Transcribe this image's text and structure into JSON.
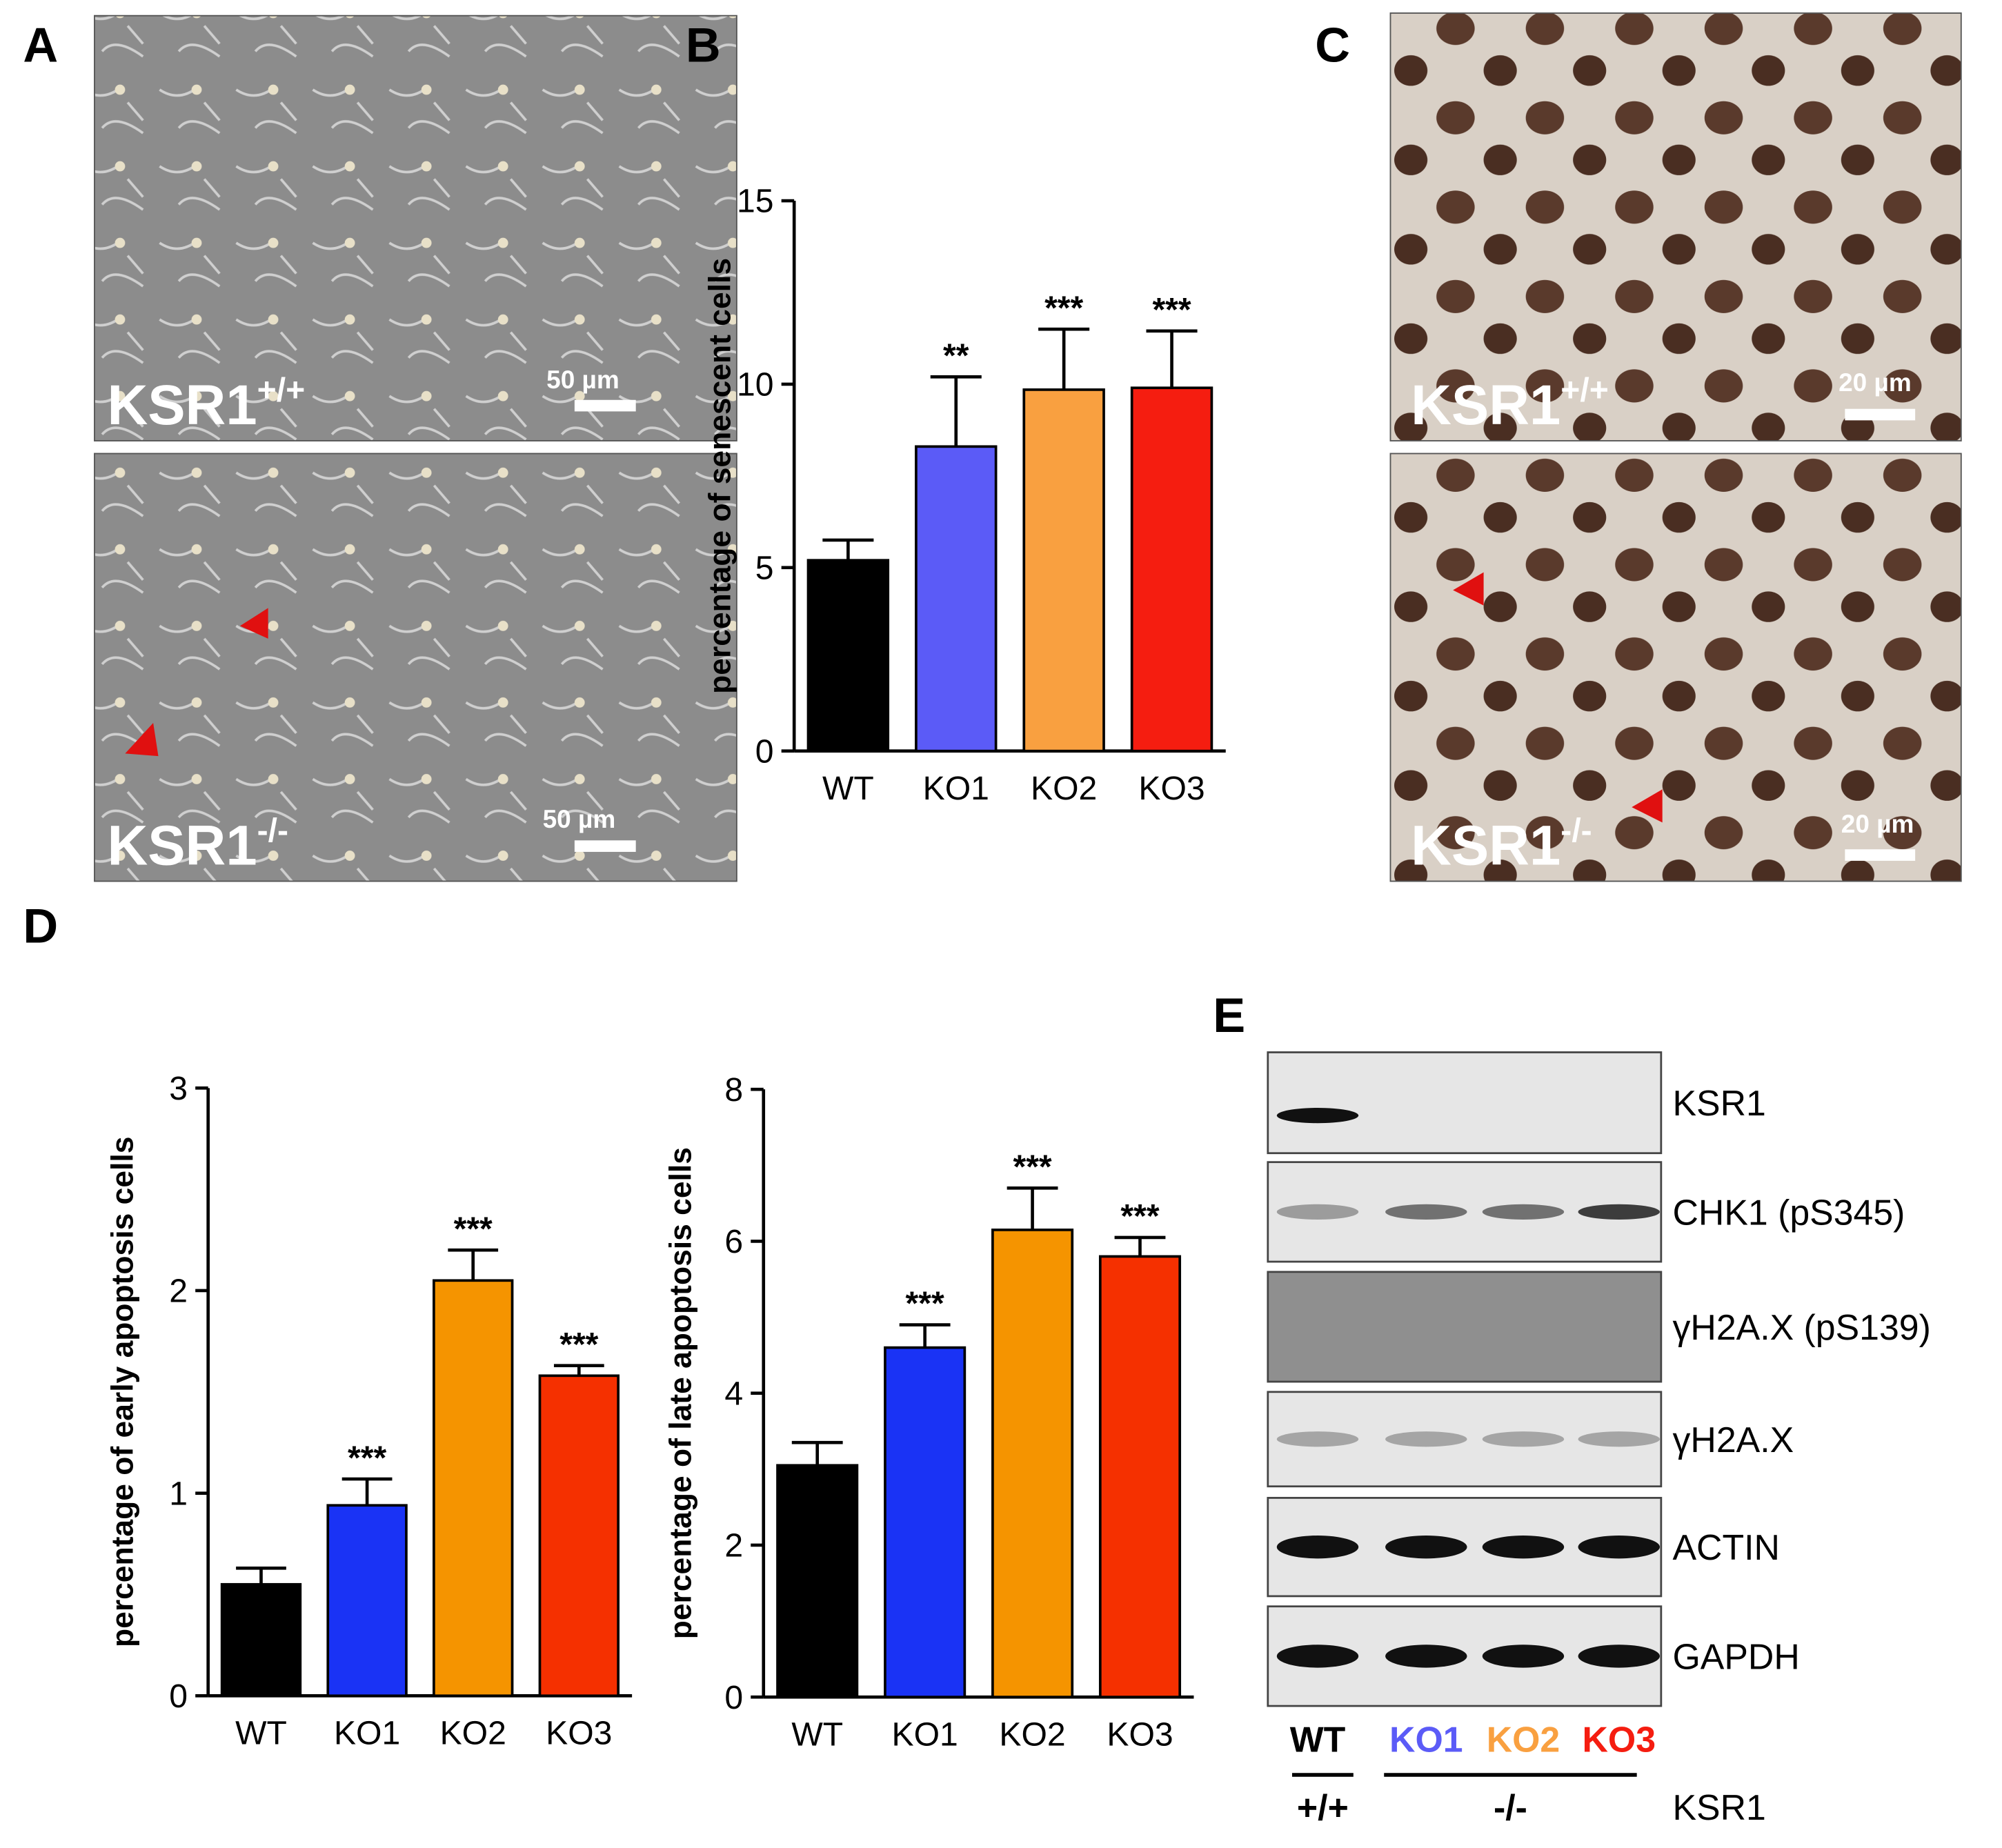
{
  "chart_data": [
    {
      "type": "bar",
      "y_label": "percentage of senescent cells",
      "categories": [
        "WT",
        "KO1",
        "KO2",
        "KO3"
      ],
      "values": [
        5.2,
        8.3,
        9.85,
        9.9
      ],
      "errors": [
        0.55,
        1.9,
        1.65,
        1.55
      ],
      "annotations": [
        null,
        "**",
        "***",
        "***"
      ],
      "colors": [
        "#000000",
        "#5b5bf7",
        "#f9a040",
        "#f51d10"
      ],
      "ylim": [
        0,
        15
      ],
      "yticks": [
        0,
        5,
        10,
        15
      ]
    },
    {
      "type": "bar",
      "y_label": "percentage of early apoptosis cells",
      "categories": [
        "WT",
        "KO1",
        "KO2",
        "KO3"
      ],
      "values": [
        0.55,
        0.94,
        2.05,
        1.58
      ],
      "errors": [
        0.08,
        0.13,
        0.15,
        0.05
      ],
      "annotations": [
        null,
        "***",
        "***",
        "***"
      ],
      "colors": [
        "#000000",
        "#1a33f5",
        "#f59400",
        "#f53000"
      ],
      "ylim": [
        0,
        3
      ],
      "yticks": [
        0,
        1,
        2,
        3
      ]
    },
    {
      "type": "bar",
      "y_label": "percentage of late apoptosis cells",
      "categories": [
        "WT",
        "KO1",
        "KO2",
        "KO3"
      ],
      "values": [
        3.05,
        4.6,
        6.15,
        5.8
      ],
      "errors": [
        0.3,
        0.3,
        0.55,
        0.25
      ],
      "annotations": [
        null,
        "***",
        "***",
        "***"
      ],
      "colors": [
        "#000000",
        "#1a33f5",
        "#f59400",
        "#f53000"
      ],
      "ylim": [
        0,
        8
      ],
      "yticks": [
        0,
        2,
        4,
        6,
        8
      ]
    }
  ],
  "panel_letters": [
    "A",
    "B",
    "C",
    "D",
    "E"
  ],
  "micrographs": [
    {
      "gene": "KSR1",
      "genotype": "+/+",
      "scale": "50 µm"
    },
    {
      "gene": "KSR1",
      "genotype": "-/-",
      "scale": "50 µm"
    },
    {
      "gene": "KSR1",
      "genotype": "+/+",
      "scale": "20 µm"
    },
    {
      "gene": "KSR1",
      "genotype": "-/-",
      "scale": "20 µm"
    }
  ],
  "blot": {
    "rows": [
      "KSR1",
      "CHK1 (pS345)",
      "γH2A.X (pS139)",
      "γH2A.X",
      "ACTIN",
      "GAPDH"
    ],
    "lanes": [
      {
        "label": "WT",
        "color": "#000000"
      },
      {
        "label": "KO1",
        "color": "#5b5bf7"
      },
      {
        "label": "KO2",
        "color": "#f9a040"
      },
      {
        "label": "KO3",
        "color": "#f51d10"
      }
    ],
    "genotypes": [
      "+/+",
      "-/-"
    ],
    "genotype_label": "KSR1"
  }
}
